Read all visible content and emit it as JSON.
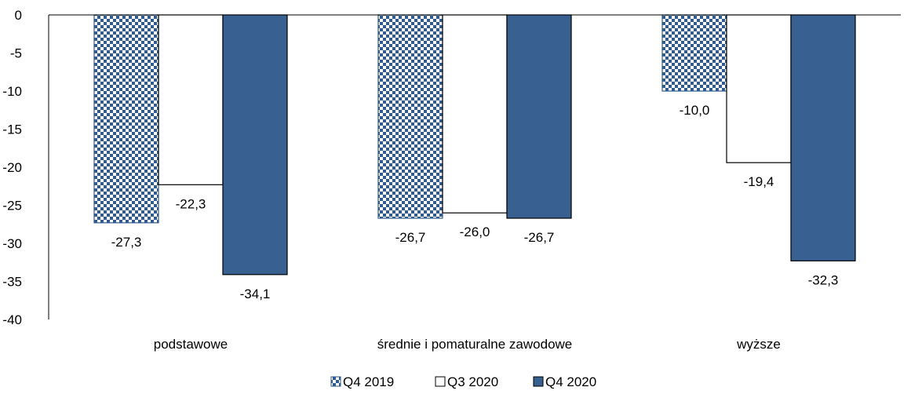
{
  "chart_data": {
    "type": "bar",
    "categories": [
      "podstawowe",
      "średnie i pomaturalne zawodowe",
      "wyższe"
    ],
    "series": [
      {
        "name": "Q4 2019",
        "values": [
          -27.3,
          -26.7,
          -10.0
        ],
        "labels": [
          "-27,3",
          "-26,7",
          "-10,0"
        ],
        "style": "checker",
        "color": "#2F5B8E"
      },
      {
        "name": "Q3 2020",
        "values": [
          -22.3,
          -26.0,
          -19.4
        ],
        "labels": [
          "-22,3",
          "-26,0",
          "-19,4"
        ],
        "style": "outline",
        "color": "#000000"
      },
      {
        "name": "Q4 2020",
        "values": [
          -34.1,
          -26.7,
          -32.3
        ],
        "labels": [
          "-34,1",
          "-26,7",
          "-32,3"
        ],
        "style": "solid",
        "color": "#386192"
      }
    ],
    "yticks": [
      0,
      -5,
      -10,
      -15,
      -20,
      -25,
      -30,
      -35,
      -40
    ],
    "ylim": [
      -40,
      0
    ],
    "legend_position": "bottom",
    "grid": false
  }
}
